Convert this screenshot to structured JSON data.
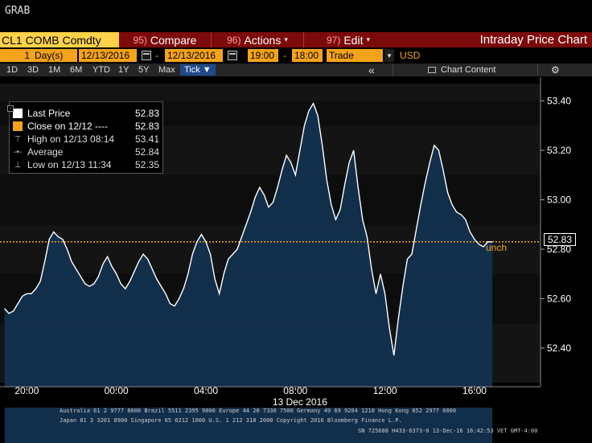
{
  "topbar": {
    "label": "GRAB"
  },
  "redbar": {
    "ticker": "CL1 COMB Comdty",
    "menus": [
      {
        "num": "95)",
        "label": "Compare"
      },
      {
        "num": "96)",
        "label": "Actions"
      },
      {
        "num": "97)",
        "label": "Edit"
      }
    ],
    "title": "Intraday Price Chart"
  },
  "controls": {
    "days_count": "1",
    "days_unit": "Day(s)",
    "start_date": "12/13/2016",
    "date_sep": "-",
    "end_date": "12/13/2016",
    "start_time": "19:00",
    "time_sep": "-",
    "end_time": "18:00",
    "field": "Trade",
    "currency": "USD"
  },
  "periods": [
    "1D",
    "3D",
    "1M",
    "6M",
    "YTD",
    "1Y",
    "5Y",
    "Max"
  ],
  "tick_button": "Tick ▼",
  "collapse_button": "«",
  "chart_content_button": "Chart Content",
  "legend": {
    "rows": [
      {
        "label": "Last Price",
        "value": "52.83"
      },
      {
        "label": "Close on 12/12 ----",
        "value": "52.83"
      },
      {
        "label": "High on 12/13 08:14",
        "value": "53.41"
      },
      {
        "label": "Average",
        "value": "52.84"
      },
      {
        "label": "Low on 12/13 11:34",
        "value": "52.35"
      }
    ],
    "collapse_symbol": "-"
  },
  "last_badge": "52.83",
  "unch_label": "unch",
  "chart_data": {
    "type": "line",
    "title": "",
    "xlabel": "13 Dec 2016",
    "ylabel": "",
    "ylim": [
      52.26,
      53.47
    ],
    "yticks": [
      53.4,
      53.2,
      53.0,
      52.8,
      52.6,
      52.4
    ],
    "ytick_labels": [
      "53.40",
      "53.20",
      "53.00",
      "52.80",
      "52.60",
      "52.40"
    ],
    "xticks_hours": [
      20,
      24,
      28,
      32,
      36,
      40
    ],
    "xtick_labels": [
      "20:00",
      "00:00",
      "04:00",
      "08:00",
      "12:00",
      "16:00"
    ],
    "x_start_hour": 18.8,
    "x_end_hour": 42.95,
    "close_reference": 52.83,
    "grid": false,
    "series": [
      {
        "name": "Last Price",
        "x_hours": [
          19.0,
          19.2,
          19.4,
          19.6,
          19.8,
          20.0,
          20.2,
          20.4,
          20.6,
          20.8,
          21.0,
          21.2,
          21.4,
          21.6,
          21.8,
          22.0,
          22.2,
          22.4,
          22.6,
          22.8,
          23.0,
          23.2,
          23.4,
          23.6,
          23.8,
          24.0,
          24.2,
          24.4,
          24.6,
          24.8,
          25.0,
          25.2,
          25.4,
          25.6,
          25.8,
          26.0,
          26.2,
          26.4,
          26.6,
          26.8,
          27.0,
          27.2,
          27.4,
          27.6,
          27.8,
          28.0,
          28.2,
          28.4,
          28.6,
          28.8,
          29.0,
          29.2,
          29.4,
          29.6,
          29.8,
          30.0,
          30.2,
          30.4,
          30.6,
          30.8,
          31.0,
          31.2,
          31.4,
          31.6,
          31.8,
          32.0,
          32.2,
          32.4,
          32.6,
          32.8,
          33.0,
          33.2,
          33.4,
          33.6,
          33.8,
          34.0,
          34.2,
          34.4,
          34.6,
          34.8,
          35.0,
          35.2,
          35.4,
          35.6,
          35.8,
          36.0,
          36.2,
          36.4,
          36.6,
          36.8,
          37.0,
          37.2,
          37.4,
          37.6,
          37.8,
          38.0,
          38.2,
          38.4,
          38.6,
          38.8,
          39.0,
          39.2,
          39.4,
          39.6,
          39.8,
          40.0,
          40.2,
          40.4,
          40.6,
          40.8
        ],
        "values": [
          52.56,
          52.54,
          52.55,
          52.58,
          52.61,
          52.62,
          52.62,
          52.64,
          52.67,
          52.75,
          52.84,
          52.87,
          52.85,
          52.84,
          52.8,
          52.75,
          52.72,
          52.69,
          52.66,
          52.65,
          52.66,
          52.69,
          52.74,
          52.77,
          52.73,
          52.7,
          52.66,
          52.64,
          52.67,
          52.71,
          52.75,
          52.78,
          52.76,
          52.72,
          52.68,
          52.65,
          52.62,
          52.58,
          52.57,
          52.6,
          52.64,
          52.7,
          52.78,
          52.83,
          52.86,
          52.83,
          52.78,
          52.68,
          52.62,
          52.7,
          52.76,
          52.78,
          52.8,
          52.85,
          52.9,
          52.95,
          53.01,
          53.05,
          53.02,
          52.97,
          52.99,
          53.05,
          53.12,
          53.18,
          53.15,
          53.1,
          53.2,
          53.3,
          53.36,
          53.39,
          53.34,
          53.22,
          53.08,
          52.98,
          52.92,
          52.96,
          53.06,
          53.15,
          53.2,
          53.05,
          52.92,
          52.85,
          52.72,
          52.62,
          52.7,
          52.62,
          52.48,
          52.37,
          52.52,
          52.65,
          52.76,
          52.78,
          52.88,
          52.98,
          53.07,
          53.15,
          53.22,
          53.2,
          53.12,
          53.03,
          52.98,
          52.95,
          52.94,
          52.92,
          52.87,
          52.84,
          52.82,
          52.81,
          52.83,
          52.83
        ]
      }
    ]
  },
  "footer": {
    "line1": "Australia 61 2 9777 8600 Brazil 5511 2395 9000 Europe 44 20 7330 7500 Germany 49 69 9204 1210 Hong Kong 852 2977 6000",
    "line2": "Japan 81 3 3201 8900       Singapore 65 6212 1000       U.S. 1 212 318 2000            Copyright 2016 Bloomberg Finance L.P.",
    "line3": "SN 725688 H433-6373-0 13-Dec-16 16:42:53 VET  GMT-4:00"
  },
  "colors": {
    "accent": "#f5a31a",
    "header_red": "#7c0a0a",
    "area_fill": "#12304f",
    "line": "#ffffff"
  }
}
